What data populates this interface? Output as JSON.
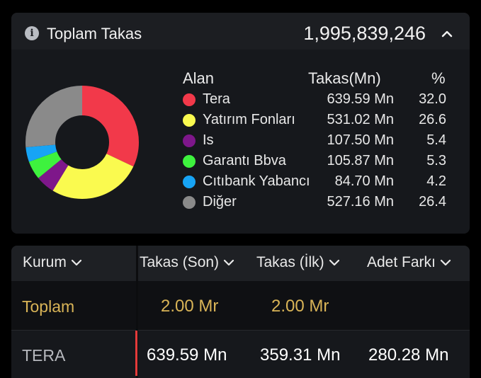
{
  "summary": {
    "title": "Toplam Takas",
    "total": "1,995,839,246"
  },
  "legend": {
    "headers": {
      "alan": "Alan",
      "takas": "Takas(Mn)",
      "pct": "%"
    },
    "items": [
      {
        "label": "Tera",
        "value": "639.59 Mn",
        "pct": "32.0",
        "color": "#f2394a"
      },
      {
        "label": "Yatırım Fonları",
        "value": "531.02 Mn",
        "pct": "26.6",
        "color": "#fafa4f"
      },
      {
        "label": "Is",
        "value": "107.50 Mn",
        "pct": "5.4",
        "color": "#7e178a"
      },
      {
        "label": "Garantı Bbva",
        "value": "105.87 Mn",
        "pct": "5.3",
        "color": "#3ef23e"
      },
      {
        "label": "Cıtıbank Yabancı",
        "value": "84.70 Mn",
        "pct": "4.2",
        "color": "#17a4f5"
      },
      {
        "label": "Diğer",
        "value": "527.16 Mn",
        "pct": "26.4",
        "color": "#8a8a8a"
      }
    ]
  },
  "table": {
    "headers": {
      "kurum": "Kurum",
      "son": "Takas (Son)",
      "ilk": "Takas (İlk)",
      "adet": "Adet Farkı"
    },
    "rows": [
      {
        "kurum": "Toplam",
        "son": "2.00 Mr",
        "ilk": "2.00 Mr",
        "adet": ""
      },
      {
        "kurum": "TERA",
        "son": "639.59 Mn",
        "ilk": "359.31 Mn",
        "adet": "280.28 Mn"
      }
    ]
  },
  "colors": {
    "accent_gold": "#d9b457",
    "marker_red": "#e43a3a"
  }
}
